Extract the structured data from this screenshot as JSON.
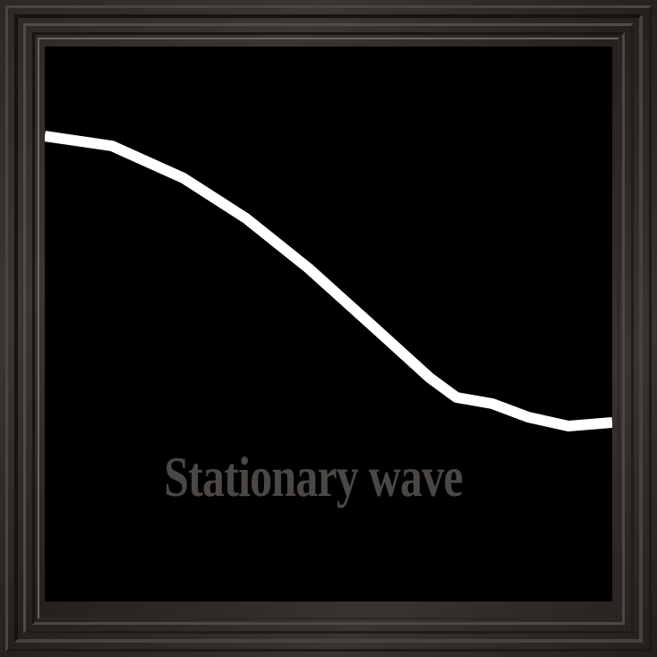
{
  "caption": "Stationary wave",
  "colors": {
    "background": "#000000",
    "wave": "#ffffff",
    "caption": "#4a4744",
    "frame": "#2b2826"
  }
}
